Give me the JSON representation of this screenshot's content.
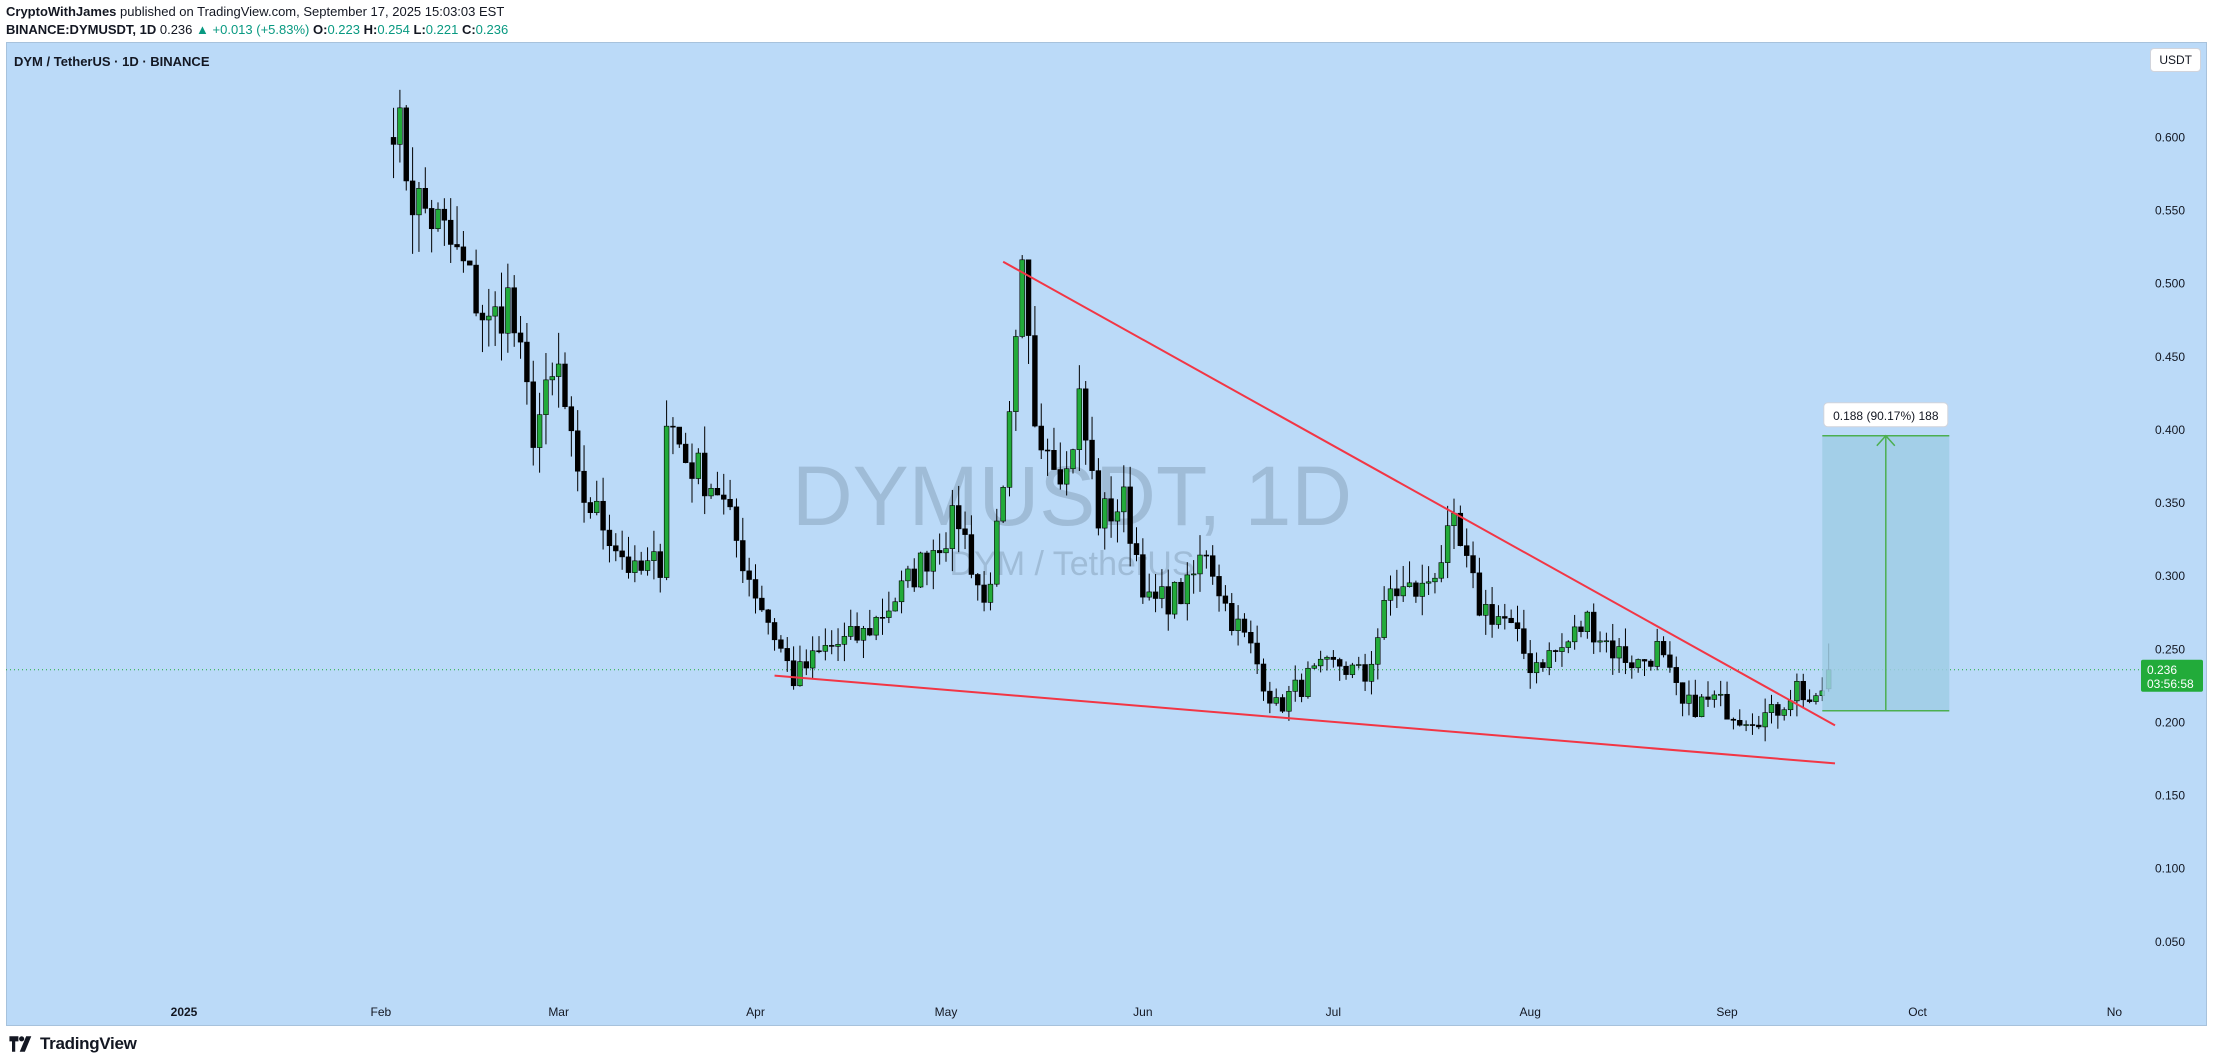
{
  "header": {
    "author": "CryptoWithJames",
    "published_text": "published on TradingView.com, September 17, 2025 15:03:03 EST",
    "symbol": "BINANCE:DYMUSDT, 1D",
    "last": "0.236",
    "change": "▲ +0.013 (+5.83%)",
    "o_label": "O:",
    "o_value": "0.223",
    "h_label": "H:",
    "h_value": "0.254",
    "l_label": "L:",
    "l_value": "0.221",
    "c_label": "C:",
    "c_value": "0.236"
  },
  "pane": {
    "legend": "DYM / TetherUS · 1D · BINANCE",
    "currency_button": "USDT",
    "watermark_main": "DYMUSDT, 1D",
    "watermark_sub": "DYM / TetherUS"
  },
  "footer": {
    "logo_text": "TradingView"
  },
  "colors": {
    "background": "#bbdaf8",
    "up": "#22ab3a",
    "down": "#000000",
    "trendline": "#f23645",
    "measure_fill": "#9fcde5",
    "measure_line": "#4caf50",
    "price_tag": "#22ab3a"
  },
  "chart_data": {
    "type": "candlestick",
    "symbol": "DYMUSDT",
    "interval": "1D",
    "exchange": "BINANCE",
    "y_axis": {
      "range": [
        0.02,
        0.635
      ],
      "ticks": [
        "0.600",
        "0.550",
        "0.500",
        "0.450",
        "0.400",
        "0.350",
        "0.300",
        "0.250",
        "0.200",
        "0.150",
        "0.100",
        "0.050"
      ]
    },
    "x_axis": {
      "ticks": [
        "2025",
        "Feb",
        "Mar",
        "Apr",
        "May",
        "Jun",
        "Jul",
        "Aug",
        "Sep",
        "Oct",
        "No"
      ]
    },
    "current_price": {
      "value": 0.236,
      "label": "0.236",
      "countdown": "03:56:58"
    },
    "anchors": [
      {
        "date": "2025-02-03",
        "price": 0.62
      },
      {
        "date": "2025-02-06",
        "price": 0.56
      },
      {
        "date": "2025-02-10",
        "price": 0.54
      },
      {
        "date": "2025-02-14",
        "price": 0.51
      },
      {
        "date": "2025-02-18",
        "price": 0.47
      },
      {
        "date": "2025-02-21",
        "price": 0.49
      },
      {
        "date": "2025-02-25",
        "price": 0.4
      },
      {
        "date": "2025-03-01",
        "price": 0.44
      },
      {
        "date": "2025-03-04",
        "price": 0.36
      },
      {
        "date": "2025-03-09",
        "price": 0.33
      },
      {
        "date": "2025-03-13",
        "price": 0.3
      },
      {
        "date": "2025-03-17",
        "price": 0.31
      },
      {
        "date": "2025-03-18",
        "price": 0.41
      },
      {
        "date": "2025-03-21",
        "price": 0.38
      },
      {
        "date": "2025-03-26",
        "price": 0.36
      },
      {
        "date": "2025-03-31",
        "price": 0.3
      },
      {
        "date": "2025-04-04",
        "price": 0.26
      },
      {
        "date": "2025-04-07",
        "price": 0.23
      },
      {
        "date": "2025-04-12",
        "price": 0.25
      },
      {
        "date": "2025-04-18",
        "price": 0.26
      },
      {
        "date": "2025-04-24",
        "price": 0.29
      },
      {
        "date": "2025-04-29",
        "price": 0.32
      },
      {
        "date": "2025-05-03",
        "price": 0.34
      },
      {
        "date": "2025-05-07",
        "price": 0.28
      },
      {
        "date": "2025-05-10",
        "price": 0.35
      },
      {
        "date": "2025-05-13",
        "price": 0.5
      },
      {
        "date": "2025-05-15",
        "price": 0.41
      },
      {
        "date": "2025-05-20",
        "price": 0.37
      },
      {
        "date": "2025-05-22",
        "price": 0.42
      },
      {
        "date": "2025-05-25",
        "price": 0.34
      },
      {
        "date": "2025-05-29",
        "price": 0.35
      },
      {
        "date": "2025-06-02",
        "price": 0.28
      },
      {
        "date": "2025-06-08",
        "price": 0.29
      },
      {
        "date": "2025-06-11",
        "price": 0.32
      },
      {
        "date": "2025-06-14",
        "price": 0.28
      },
      {
        "date": "2025-06-18",
        "price": 0.25
      },
      {
        "date": "2025-06-22",
        "price": 0.21
      },
      {
        "date": "2025-06-27",
        "price": 0.23
      },
      {
        "date": "2025-07-02",
        "price": 0.24
      },
      {
        "date": "2025-07-06",
        "price": 0.23
      },
      {
        "date": "2025-07-10",
        "price": 0.29
      },
      {
        "date": "2025-07-15",
        "price": 0.29
      },
      {
        "date": "2025-07-20",
        "price": 0.33
      },
      {
        "date": "2025-07-24",
        "price": 0.28
      },
      {
        "date": "2025-07-28",
        "price": 0.27
      },
      {
        "date": "2025-08-01",
        "price": 0.24
      },
      {
        "date": "2025-08-06",
        "price": 0.25
      },
      {
        "date": "2025-08-10",
        "price": 0.27
      },
      {
        "date": "2025-08-14",
        "price": 0.25
      },
      {
        "date": "2025-08-18",
        "price": 0.24
      },
      {
        "date": "2025-08-21",
        "price": 0.25
      },
      {
        "date": "2025-08-25",
        "price": 0.21
      },
      {
        "date": "2025-08-30",
        "price": 0.215
      },
      {
        "date": "2025-09-03",
        "price": 0.205
      },
      {
        "date": "2025-09-08",
        "price": 0.205
      },
      {
        "date": "2025-09-12",
        "price": 0.225
      },
      {
        "date": "2025-09-15",
        "price": 0.21
      },
      {
        "date": "2025-09-17",
        "price": 0.236
      }
    ],
    "last_candle": {
      "date": "2025-09-17",
      "open": 0.223,
      "high": 0.254,
      "low": 0.221,
      "close": 0.236
    },
    "trendlines": [
      {
        "name": "upper",
        "from": {
          "date": "2025-05-10",
          "price": 0.515
        },
        "to": {
          "date": "2025-09-18",
          "price": 0.198
        }
      },
      {
        "name": "lower",
        "from": {
          "date": "2025-04-04",
          "price": 0.232
        },
        "to": {
          "date": "2025-09-18",
          "price": 0.172
        }
      }
    ],
    "measurement": {
      "from": {
        "date": "2025-09-16",
        "price": 0.208
      },
      "to": {
        "date": "2025-10-06",
        "price": 0.396
      },
      "label": "0.188 (90.17%) 188"
    }
  }
}
